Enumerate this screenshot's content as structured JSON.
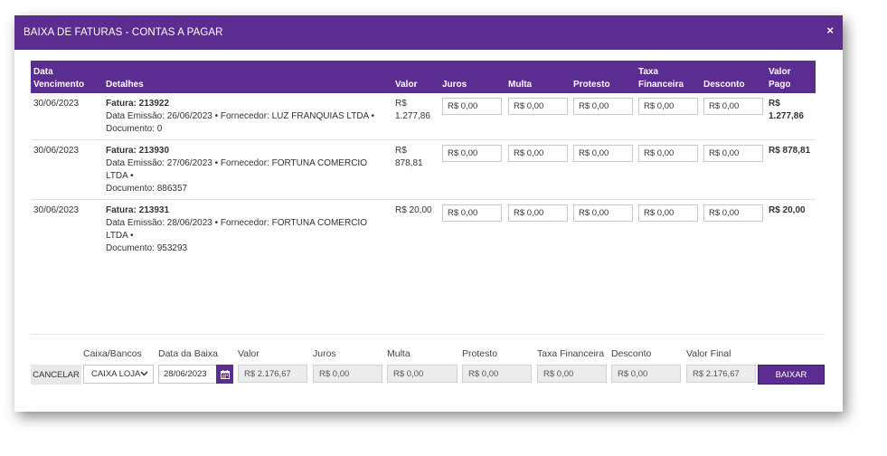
{
  "modal": {
    "title": "BAIXA DE FATURAS - CONTAS A PAGAR",
    "close_symbol": "×"
  },
  "table": {
    "headers": {
      "vencimento_1": "Data",
      "vencimento_2": "Vencimento",
      "detalhes": "Detalhes",
      "valor": "Valor",
      "juros": "Juros",
      "multa": "Multa",
      "protesto": "Protesto",
      "taxa_1": "Taxa",
      "taxa_2": "Financeira",
      "desconto": "Desconto",
      "valor_pago_1": "Valor",
      "valor_pago_2": "Pago"
    },
    "rows": [
      {
        "vencimento": "30/06/2023",
        "fatura": "Fatura: 213922",
        "detalhe_1": "Data Emissão: 26/06/2023 • Fornecedor: LUZ FRANQUIAS LTDA •",
        "detalhe_2": "Documento: 0",
        "valor_1": "R$",
        "valor_2": "1.277,86",
        "juros": "R$ 0,00",
        "multa": "R$ 0,00",
        "protesto": "R$ 0,00",
        "taxa": "R$ 0,00",
        "desconto": "R$ 0,00",
        "valor_pago_1": "R$",
        "valor_pago_2": "1.277,86"
      },
      {
        "vencimento": "30/06/2023",
        "fatura": "Fatura: 213930",
        "detalhe_1": "Data Emissão: 27/06/2023 • Fornecedor: FORTUNA COMERCIO LTDA •",
        "detalhe_2": "Documento: 886357",
        "valor_1": "R$ 878,81",
        "valor_2": "",
        "juros": "R$ 0,00",
        "multa": "R$ 0,00",
        "protesto": "R$ 0,00",
        "taxa": "R$ 0,00",
        "desconto": "R$ 0,00",
        "valor_pago_1": "R$ 878,81",
        "valor_pago_2": ""
      },
      {
        "vencimento": "30/06/2023",
        "fatura": "Fatura: 213931",
        "detalhe_1": "Data Emissão: 28/06/2023 • Fornecedor: FORTUNA COMERCIO LTDA •",
        "detalhe_2": "Documento: 953293",
        "valor_1": "R$ 20,00",
        "valor_2": "",
        "juros": "R$ 0,00",
        "multa": "R$ 0,00",
        "protesto": "R$ 0,00",
        "taxa": "R$ 0,00",
        "desconto": "R$ 0,00",
        "valor_pago_1": "R$ 20,00",
        "valor_pago_2": ""
      }
    ]
  },
  "footer": {
    "labels": {
      "caixa": "Caixa/Bancos",
      "data_baixa": "Data da Baixa",
      "valor": "Valor",
      "juros": "Juros",
      "multa": "Multa",
      "protesto": "Protesto",
      "taxa": "Taxa Financeira",
      "desconto": "Desconto",
      "valor_final": "Valor Final"
    },
    "cancel_label": "CANCELAR",
    "caixa_value": "CAIXA LOJA",
    "data_baixa_value": "28/06/2023",
    "valor": "R$ 2.176,67",
    "juros": "R$ 0,00",
    "multa": "R$ 0,00",
    "protesto": "R$ 0,00",
    "taxa": "R$ 0,00",
    "desconto": "R$ 0,00",
    "valor_final": "R$ 2.176,67",
    "baixar_label": "BAIXAR"
  },
  "colors": {
    "accent": "#5c2d91"
  },
  "icons": {
    "close": "close-icon",
    "calendar": "calendar-icon",
    "select_chevron": "chevron-down-icon"
  }
}
